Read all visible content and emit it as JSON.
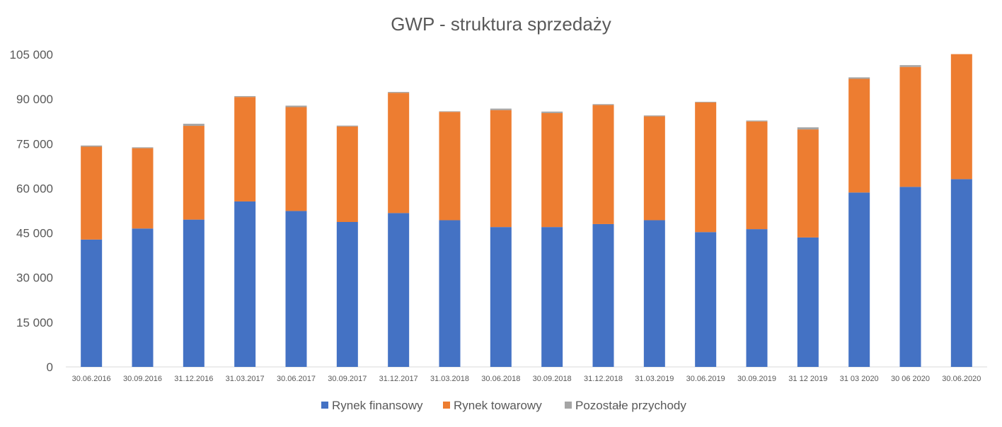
{
  "chart_data": {
    "type": "bar",
    "stacked": true,
    "title": "GWP - struktura sprzedaży",
    "xlabel": "",
    "ylabel": "",
    "ylim": [
      0,
      105000
    ],
    "yticks": [
      0,
      15000,
      30000,
      45000,
      60000,
      75000,
      90000,
      105000
    ],
    "ytick_labels": [
      "0",
      "15 000",
      "30 000",
      "45 000",
      "60 000",
      "75 000",
      "90 000",
      "105 000"
    ],
    "grid": false,
    "legend_position": "bottom",
    "categories": [
      "30.06.2016",
      "30.09.2016",
      "31.12.2016",
      "31.03.2017",
      "30.06.2017",
      "30.09.2017",
      "31.12.2017",
      "31.03.2018",
      "30.06.2018",
      "30.09.2018",
      "31.12.2018",
      "31.03.2019",
      "30.06.2019",
      "30.09.2019",
      "31 12 2019",
      "31 03 2020",
      "30 06 2020",
      "30.06.2020"
    ],
    "series": [
      {
        "name": "Rynek finansowy",
        "color": "#4472c4",
        "values": [
          42800,
          46500,
          49500,
          55600,
          52400,
          48700,
          51700,
          49300,
          47000,
          47000,
          48000,
          49300,
          45300,
          46300,
          43500,
          58600,
          60500,
          63100
        ]
      },
      {
        "name": "Rynek towarowy",
        "color": "#ed7d31",
        "values": [
          31200,
          27000,
          31500,
          35100,
          34900,
          32100,
          40400,
          36400,
          39300,
          38300,
          40000,
          34900,
          43600,
          36200,
          36300,
          38200,
          40300,
          42000
        ]
      },
      {
        "name": "Pozostałe przychody",
        "color": "#a5a5a5",
        "values": [
          400,
          300,
          700,
          300,
          500,
          300,
          300,
          200,
          500,
          500,
          300,
          300,
          200,
          300,
          700,
          500,
          600,
          0
        ]
      }
    ]
  }
}
